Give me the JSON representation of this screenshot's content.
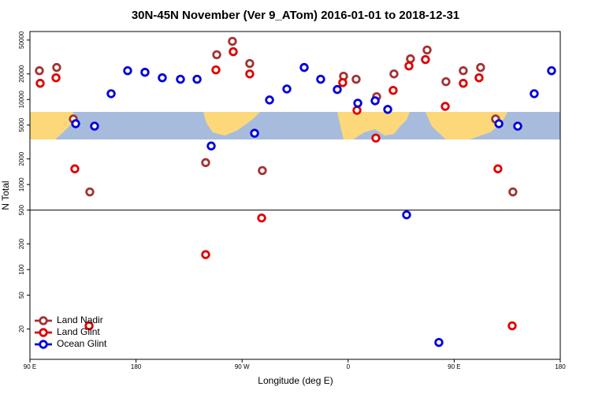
{
  "chart_data": {
    "type": "scatter",
    "title": "30N-45N November (Ver 9_ATom)   2016-01-01 to 2018-12-31",
    "x_label": "Longitude (deg E)",
    "y_label": "N Total",
    "log_y": true,
    "legend": "lower left",
    "hline": 500,
    "xlim": [
      90,
      540
    ],
    "xticks": [
      {
        "value": 90,
        "label": "90 E"
      },
      180,
      {
        "value": 270,
        "label": "90 W"
      },
      {
        "value": 360,
        "label": "0"
      },
      {
        "value": 450,
        "label": "90 E"
      },
      {
        "value": 540,
        "label": "180"
      }
    ],
    "ylim": [
      8.8,
      63000
    ],
    "yticks": [
      20,
      50,
      100,
      200,
      500,
      1000,
      2000,
      5000,
      10000,
      20000,
      50000
    ],
    "series": [
      {
        "name": "Land Nadir",
        "color": "#a33333",
        "x": [
          98.0,
          112.7,
          126.8,
          140.8,
          239.1,
          248.5,
          261.8,
          276.5,
          287.2,
          356.1,
          366.8,
          384.2,
          398.9,
          412.9,
          427.0,
          443.0,
          457.7,
          472.4,
          485.1,
          499.8
        ],
        "values": [
          21800,
          23800,
          5900,
          819,
          1810,
          33600,
          48300,
          26500,
          1460,
          18800,
          17300,
          10800,
          20000,
          30100,
          38200,
          16200,
          21800,
          23800,
          5900,
          819
        ]
      },
      {
        "name": "Land Glint",
        "color": "#e00000",
        "x": [
          98.7,
          112.1,
          128.1,
          140.2,
          239.1,
          247.8,
          262.5,
          276.5,
          286.6,
          355.4,
          367.5,
          383.5,
          398.2,
          411.6,
          425.6,
          442.4,
          457.7,
          471.1,
          487.1,
          499.2
        ],
        "values": [
          15500,
          18000,
          1530,
          21.8,
          150,
          22300,
          36500,
          20000,
          404,
          15800,
          7470,
          3520,
          12800,
          24800,
          29500,
          8300,
          15500,
          18000,
          1530,
          21.8
        ]
      },
      {
        "name": "Ocean Glint",
        "color": "#0000dd",
        "x": [
          128.8,
          144.8,
          158.9,
          172.9,
          187.6,
          202.3,
          217.7,
          231.8,
          243.8,
          280.6,
          293.3,
          308.0,
          322.7,
          336.7,
          350.8,
          368.2,
          382.9,
          393.6,
          409.6,
          437.0,
          487.9,
          503.9,
          517.9,
          532.6
        ],
        "values": [
          5190,
          4860,
          11700,
          21800,
          20900,
          18000,
          17300,
          17300,
          2840,
          4010,
          9870,
          13300,
          23800,
          17300,
          13100,
          9060,
          9660,
          7640,
          440,
          13.9,
          5190,
          4860,
          11700,
          21800
        ]
      }
    ]
  }
}
